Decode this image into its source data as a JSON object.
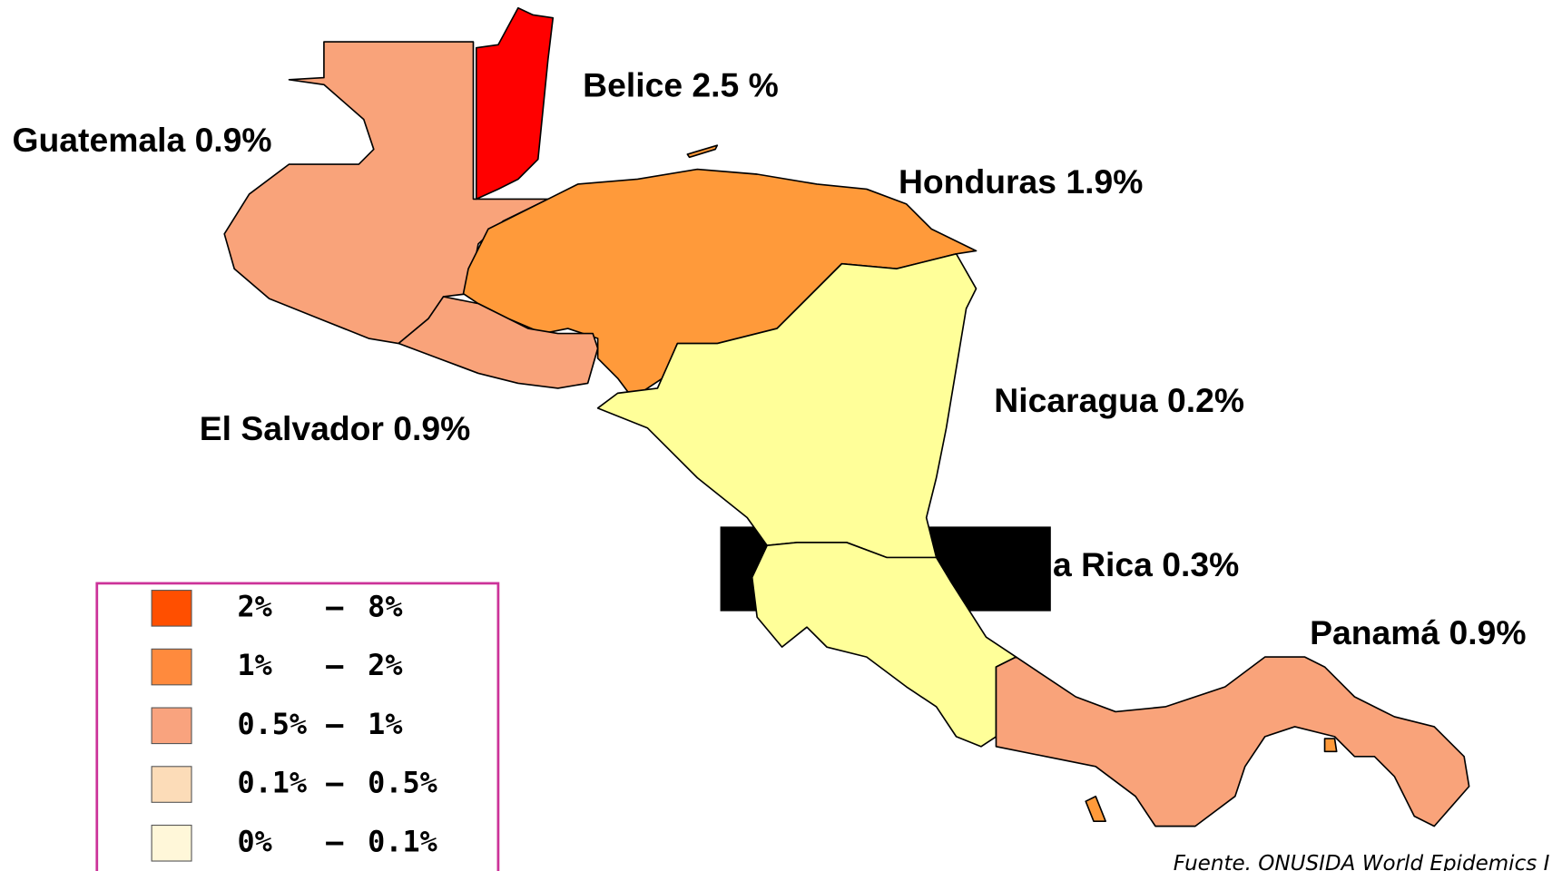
{
  "labels": {
    "belice": "Belice 2.5 %",
    "guatemala": "Guatemala 0.9%",
    "honduras": "Honduras 1.9%",
    "nicaragua": "Nicaragua 0.2%",
    "el_salvador": "El Salvador 0.9%",
    "costa_rica": "a Rica 0.3%",
    "panama": "Panamá 0.9%"
  },
  "legend": [
    {
      "from": "2%",
      "dash": "–",
      "to": "8%"
    },
    {
      "from": "1%",
      "dash": "–",
      "to": "2%"
    },
    {
      "from": "0.5%",
      "dash": "–",
      "to": "1%"
    },
    {
      "from": "0.1%",
      "dash": "–",
      "to": "0.5%"
    },
    {
      "from": "0%",
      "dash": "–",
      "to": "0.1%"
    }
  ],
  "source": "Fuente. ONUSIDA World Epidemics I"
}
